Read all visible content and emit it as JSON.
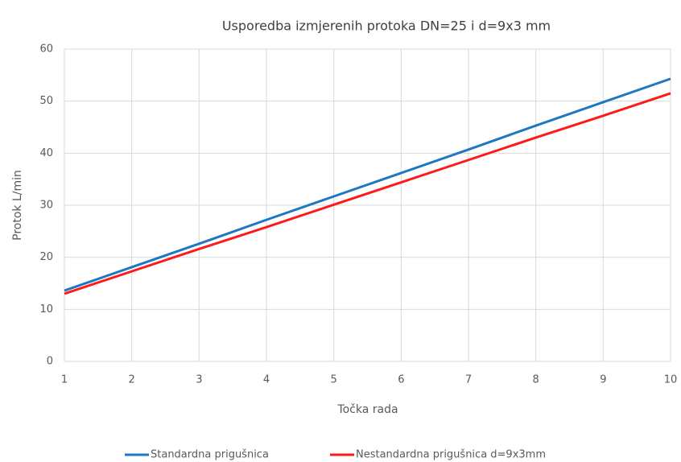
{
  "chart_data": {
    "type": "line",
    "title": "Usporedba izmjerenih protoka DN=25 i d=9x3 mm",
    "x_label": "Točka rada",
    "y_label": "Protok   L/min",
    "x": [
      1,
      2,
      3,
      4,
      5,
      6,
      7,
      8,
      9,
      10
    ],
    "series": [
      {
        "name": "Standardna prigušnica",
        "color": "#1f77c4",
        "values": [
          13.6,
          18.1,
          22.6,
          27.2,
          31.7,
          36.2,
          40.7,
          45.3,
          49.8,
          54.3
        ]
      },
      {
        "name": "Nestandardna prigušnica d=9x3mm",
        "color": "#ff1a1a",
        "values": [
          13.0,
          17.3,
          21.6,
          25.8,
          30.1,
          34.4,
          38.7,
          43.0,
          47.2,
          51.5
        ]
      }
    ],
    "xlim": [
      1,
      10
    ],
    "xticks": [
      1,
      2,
      3,
      4,
      5,
      6,
      7,
      8,
      9,
      10
    ],
    "ylim": [
      0,
      60
    ],
    "yticks": [
      0,
      10,
      20,
      30,
      40,
      50,
      60
    ],
    "grid": true,
    "legend": "bottom"
  }
}
